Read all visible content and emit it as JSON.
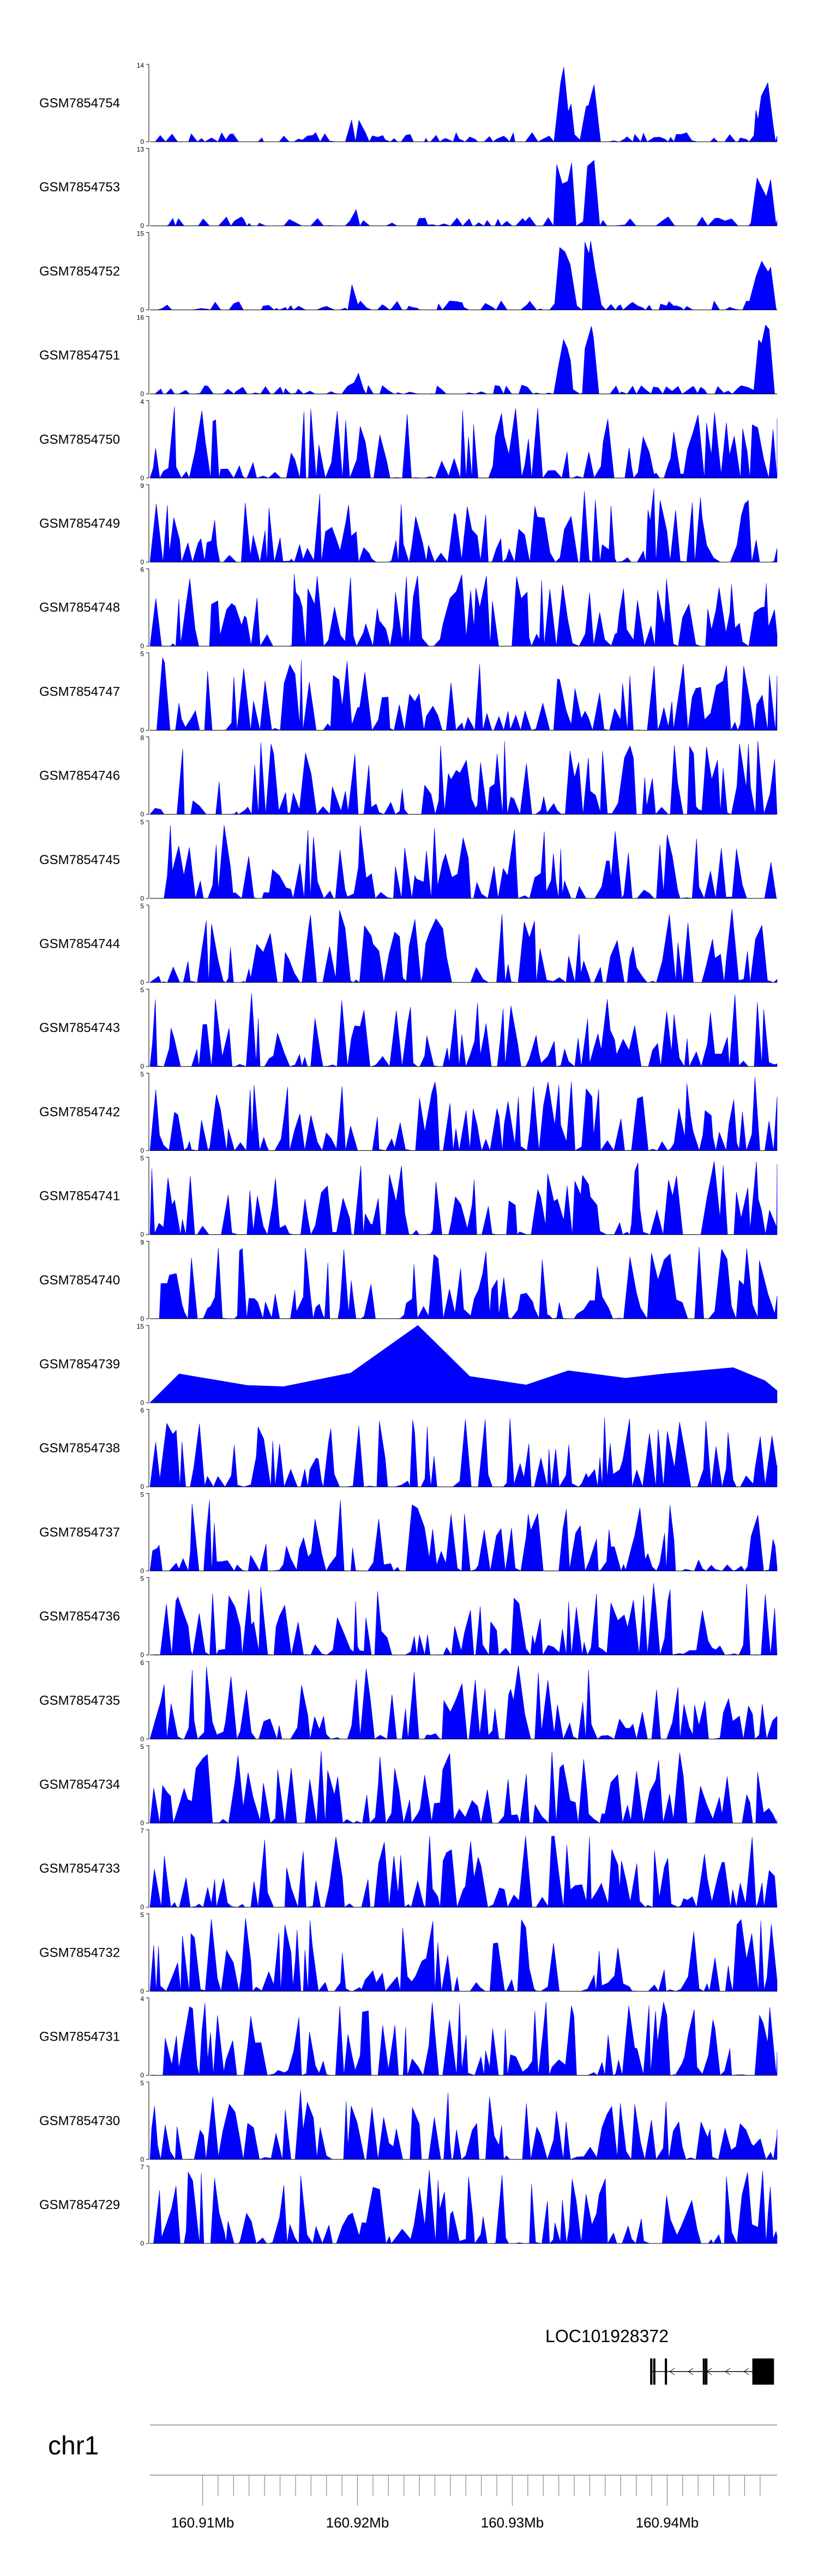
{
  "chart_data": {
    "type": "area",
    "chromosome": "chr1",
    "x_unit": "Mb",
    "xlim": [
      160.9066,
      160.9471
    ],
    "color": "#0000ff",
    "tracks": [
      {
        "label": "GSM7854754",
        "ymax": "14",
        "ymin": "0"
      },
      {
        "label": "GSM7854753",
        "ymax": "13",
        "ymin": "0"
      },
      {
        "label": "GSM7854752",
        "ymax": "15",
        "ymin": "0"
      },
      {
        "label": "GSM7854751",
        "ymax": "16",
        "ymin": "0"
      },
      {
        "label": "GSM7854750",
        "ymax": "4",
        "ymin": "0"
      },
      {
        "label": "GSM7854749",
        "ymax": "9",
        "ymin": "0"
      },
      {
        "label": "GSM7854748",
        "ymax": "6",
        "ymin": "0"
      },
      {
        "label": "GSM7854747",
        "ymax": "5",
        "ymin": "0"
      },
      {
        "label": "GSM7854746",
        "ymax": "8",
        "ymin": "0"
      },
      {
        "label": "GSM7854745",
        "ymax": "5",
        "ymin": "0"
      },
      {
        "label": "GSM7854744",
        "ymax": "5",
        "ymin": "0"
      },
      {
        "label": "GSM7854743",
        "ymax": "5",
        "ymin": "0"
      },
      {
        "label": "GSM7854742",
        "ymax": "5",
        "ymin": "0"
      },
      {
        "label": "GSM7854741",
        "ymax": "5",
        "ymin": "0"
      },
      {
        "label": "GSM7854740",
        "ymax": "9",
        "ymin": "0"
      },
      {
        "label": "GSM7854739",
        "ymax": "15",
        "ymin": "0"
      },
      {
        "label": "GSM7854738",
        "ymax": "6",
        "ymin": "0"
      },
      {
        "label": "GSM7854737",
        "ymax": "5",
        "ymin": "0"
      },
      {
        "label": "GSM7854736",
        "ymax": "5",
        "ymin": "0"
      },
      {
        "label": "GSM7854735",
        "ymax": "6",
        "ymin": "0"
      },
      {
        "label": "GSM7854734",
        "ymax": "5",
        "ymin": "0"
      },
      {
        "label": "GSM7854733",
        "ymax": "7",
        "ymin": "0"
      },
      {
        "label": "GSM7854732",
        "ymax": "5",
        "ymin": "0"
      },
      {
        "label": "GSM7854731",
        "ymax": "4",
        "ymin": "0"
      },
      {
        "label": "GSM7854730",
        "ymax": "5",
        "ymin": "0"
      },
      {
        "label": "GSM7854729",
        "ymax": "7",
        "ymin": "0"
      }
    ],
    "gene": {
      "name": "LOC101928372",
      "strand": "-",
      "exons": [
        [
          160.9389,
          160.93905
        ],
        [
          160.9391,
          160.9392
        ],
        [
          160.93985,
          160.9399
        ],
        [
          160.9423,
          160.94235
        ],
        [
          160.94245,
          160.9426
        ],
        [
          160.9455,
          160.9469
        ]
      ],
      "intron_span": [
        160.9389,
        160.9469
      ]
    },
    "axis": {
      "ticks": [
        160.91,
        160.911,
        160.912,
        160.913,
        160.914,
        160.915,
        160.916,
        160.917,
        160.918,
        160.919,
        160.92,
        160.921,
        160.922,
        160.923,
        160.924,
        160.925,
        160.926,
        160.927,
        160.928,
        160.929,
        160.93,
        160.931,
        160.932,
        160.933,
        160.934,
        160.935,
        160.936,
        160.937,
        160.938,
        160.939,
        160.94,
        160.941,
        160.942,
        160.943,
        160.944,
        160.945,
        160.946
      ],
      "tick_labels": [
        {
          "value": 160.91,
          "label": "160.91Mb"
        },
        {
          "value": 160.92,
          "label": "160.92Mb"
        },
        {
          "value": 160.93,
          "label": "160.93Mb"
        },
        {
          "value": 160.94,
          "label": "160.94Mb"
        }
      ]
    }
  }
}
